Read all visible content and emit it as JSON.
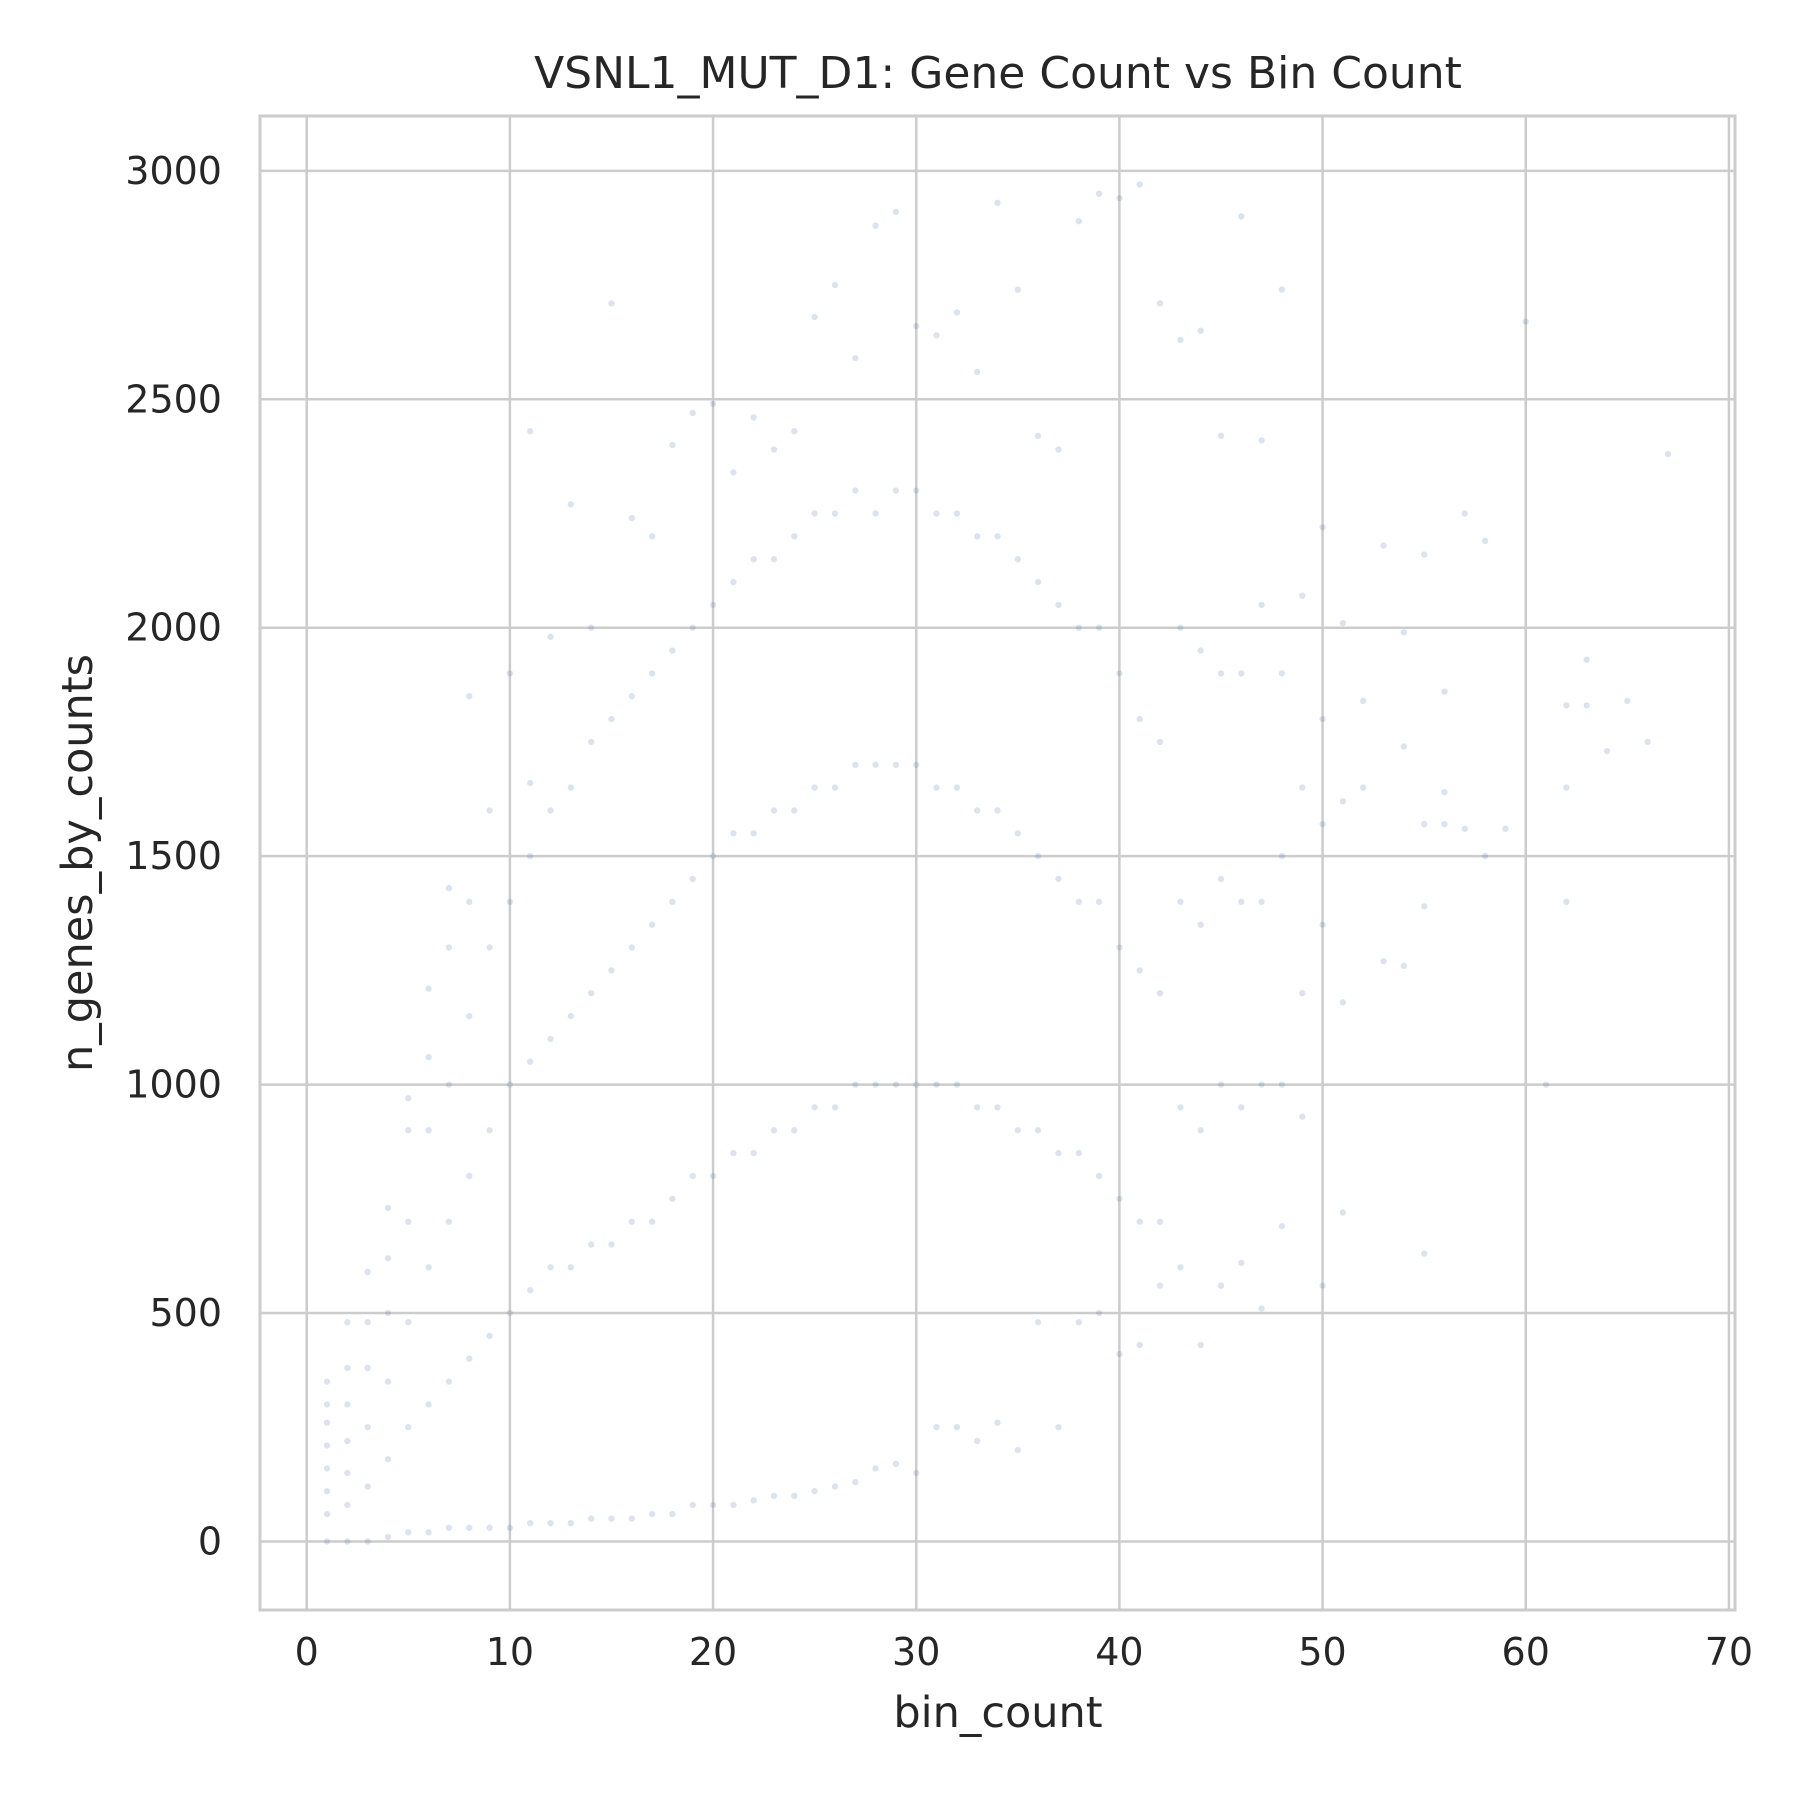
{
  "chart_data": {
    "type": "scatter",
    "title": "VSNL1_MUT_D1: Gene Count vs Bin Count",
    "xlabel": "bin_count",
    "ylabel": "n_genes_by_counts",
    "xlim": [
      -2.3,
      70.3
    ],
    "ylim": [
      -150,
      3120
    ],
    "x_ticks": [
      0,
      10,
      20,
      30,
      40,
      50,
      60,
      70
    ],
    "y_ticks": [
      0,
      500,
      1000,
      1500,
      2000,
      2500,
      3000
    ],
    "grid": true,
    "marker_color": "#4c72b0",
    "marker_alpha": 0.2,
    "series": [
      {
        "points": [
          [
            1,
            0
          ],
          [
            1,
            60
          ],
          [
            1,
            110
          ],
          [
            1,
            160
          ],
          [
            1,
            210
          ],
          [
            1,
            260
          ],
          [
            1,
            300
          ],
          [
            1,
            350
          ],
          [
            2,
            0
          ],
          [
            2,
            80
          ],
          [
            2,
            150
          ],
          [
            2,
            220
          ],
          [
            2,
            300
          ],
          [
            2,
            380
          ],
          [
            2,
            480
          ],
          [
            3,
            0
          ],
          [
            3,
            120
          ],
          [
            3,
            250
          ],
          [
            3,
            380
          ],
          [
            3,
            480
          ],
          [
            3,
            590
          ],
          [
            4,
            10
          ],
          [
            4,
            180
          ],
          [
            4,
            350
          ],
          [
            4,
            500
          ],
          [
            4,
            620
          ],
          [
            4,
            730
          ],
          [
            5,
            20
          ],
          [
            5,
            250
          ],
          [
            5,
            480
          ],
          [
            5,
            700
          ],
          [
            5,
            900
          ],
          [
            5,
            970
          ],
          [
            6,
            20
          ],
          [
            6,
            300
          ],
          [
            6,
            600
          ],
          [
            6,
            900
          ],
          [
            6,
            1060
          ],
          [
            6,
            1210
          ],
          [
            7,
            30
          ],
          [
            7,
            350
          ],
          [
            7,
            700
          ],
          [
            7,
            1000
          ],
          [
            7,
            1300
          ],
          [
            7,
            1430
          ],
          [
            8,
            30
          ],
          [
            8,
            400
          ],
          [
            8,
            800
          ],
          [
            8,
            1150
          ],
          [
            8,
            1400
          ],
          [
            8,
            1850
          ],
          [
            9,
            30
          ],
          [
            9,
            450
          ],
          [
            9,
            900
          ],
          [
            9,
            1300
          ],
          [
            9,
            1600
          ],
          [
            10,
            30
          ],
          [
            10,
            500
          ],
          [
            10,
            1000
          ],
          [
            10,
            1400
          ],
          [
            10,
            1900
          ],
          [
            11,
            40
          ],
          [
            11,
            550
          ],
          [
            11,
            1050
          ],
          [
            11,
            1500
          ],
          [
            11,
            1660
          ],
          [
            11,
            2430
          ],
          [
            12,
            40
          ],
          [
            12,
            600
          ],
          [
            12,
            1100
          ],
          [
            12,
            1600
          ],
          [
            12,
            1980
          ],
          [
            13,
            40
          ],
          [
            13,
            600
          ],
          [
            13,
            1150
          ],
          [
            13,
            1650
          ],
          [
            13,
            2270
          ],
          [
            14,
            50
          ],
          [
            14,
            650
          ],
          [
            14,
            1200
          ],
          [
            14,
            1750
          ],
          [
            14,
            2000
          ],
          [
            15,
            50
          ],
          [
            15,
            650
          ],
          [
            15,
            1250
          ],
          [
            15,
            1800
          ],
          [
            15,
            2710
          ],
          [
            16,
            50
          ],
          [
            16,
            700
          ],
          [
            16,
            1300
          ],
          [
            16,
            1850
          ],
          [
            16,
            2240
          ],
          [
            17,
            60
          ],
          [
            17,
            700
          ],
          [
            17,
            1350
          ],
          [
            17,
            1900
          ],
          [
            17,
            2200
          ],
          [
            18,
            60
          ],
          [
            18,
            750
          ],
          [
            18,
            1400
          ],
          [
            18,
            1950
          ],
          [
            18,
            2400
          ],
          [
            19,
            80
          ],
          [
            19,
            800
          ],
          [
            19,
            1450
          ],
          [
            19,
            2000
          ],
          [
            19,
            2470
          ],
          [
            20,
            80
          ],
          [
            20,
            800
          ],
          [
            20,
            1500
          ],
          [
            20,
            2050
          ],
          [
            20,
            2490
          ],
          [
            21,
            80
          ],
          [
            21,
            850
          ],
          [
            21,
            1550
          ],
          [
            21,
            2100
          ],
          [
            21,
            2340
          ],
          [
            22,
            90
          ],
          [
            22,
            850
          ],
          [
            22,
            1550
          ],
          [
            22,
            2150
          ],
          [
            22,
            2460
          ],
          [
            23,
            100
          ],
          [
            23,
            900
          ],
          [
            23,
            1600
          ],
          [
            23,
            2150
          ],
          [
            23,
            2390
          ],
          [
            24,
            100
          ],
          [
            24,
            900
          ],
          [
            24,
            1600
          ],
          [
            24,
            2200
          ],
          [
            24,
            2430
          ],
          [
            25,
            110
          ],
          [
            25,
            950
          ],
          [
            25,
            1650
          ],
          [
            25,
            2250
          ],
          [
            25,
            2680
          ],
          [
            26,
            120
          ],
          [
            26,
            950
          ],
          [
            26,
            1650
          ],
          [
            26,
            2250
          ],
          [
            26,
            2750
          ],
          [
            27,
            130
          ],
          [
            27,
            1000
          ],
          [
            27,
            1700
          ],
          [
            27,
            2300
          ],
          [
            27,
            2590
          ],
          [
            28,
            160
          ],
          [
            28,
            1000
          ],
          [
            28,
            1700
          ],
          [
            28,
            2250
          ],
          [
            28,
            2880
          ],
          [
            29,
            170
          ],
          [
            29,
            1000
          ],
          [
            29,
            1700
          ],
          [
            29,
            2300
          ],
          [
            29,
            2910
          ],
          [
            30,
            150
          ],
          [
            30,
            1000
          ],
          [
            30,
            1700
          ],
          [
            30,
            2300
          ],
          [
            30,
            2660
          ],
          [
            31,
            250
          ],
          [
            31,
            1000
          ],
          [
            31,
            1650
          ],
          [
            31,
            2250
          ],
          [
            31,
            2640
          ],
          [
            32,
            250
          ],
          [
            32,
            1000
          ],
          [
            32,
            1650
          ],
          [
            32,
            2250
          ],
          [
            32,
            2690
          ],
          [
            33,
            220
          ],
          [
            33,
            950
          ],
          [
            33,
            1600
          ],
          [
            33,
            2200
          ],
          [
            33,
            2560
          ],
          [
            34,
            260
          ],
          [
            34,
            950
          ],
          [
            34,
            1600
          ],
          [
            34,
            2200
          ],
          [
            34,
            2930
          ],
          [
            35,
            200
          ],
          [
            35,
            900
          ],
          [
            35,
            1550
          ],
          [
            35,
            2150
          ],
          [
            35,
            2740
          ],
          [
            36,
            480
          ],
          [
            36,
            900
          ],
          [
            36,
            1500
          ],
          [
            36,
            2100
          ],
          [
            36,
            2420
          ],
          [
            37,
            250
          ],
          [
            37,
            850
          ],
          [
            37,
            1450
          ],
          [
            37,
            2050
          ],
          [
            37,
            2390
          ],
          [
            38,
            480
          ],
          [
            38,
            850
          ],
          [
            38,
            1400
          ],
          [
            38,
            2000
          ],
          [
            38,
            2890
          ],
          [
            39,
            500
          ],
          [
            39,
            800
          ],
          [
            39,
            1400
          ],
          [
            39,
            2000
          ],
          [
            39,
            2950
          ],
          [
            40,
            410
          ],
          [
            40,
            750
          ],
          [
            40,
            1300
          ],
          [
            40,
            1900
          ],
          [
            40,
            2940
          ],
          [
            41,
            430
          ],
          [
            41,
            700
          ],
          [
            41,
            1250
          ],
          [
            41,
            1800
          ],
          [
            41,
            2970
          ],
          [
            42,
            560
          ],
          [
            42,
            700
          ],
          [
            42,
            1200
          ],
          [
            42,
            1750
          ],
          [
            42,
            2710
          ],
          [
            43,
            600
          ],
          [
            43,
            950
          ],
          [
            43,
            1400
          ],
          [
            43,
            2000
          ],
          [
            43,
            2630
          ],
          [
            44,
            430
          ],
          [
            44,
            900
          ],
          [
            44,
            1350
          ],
          [
            44,
            1950
          ],
          [
            44,
            2650
          ],
          [
            45,
            560
          ],
          [
            45,
            1000
          ],
          [
            45,
            1450
          ],
          [
            45,
            1900
          ],
          [
            45,
            2420
          ],
          [
            46,
            610
          ],
          [
            46,
            950
          ],
          [
            46,
            1400
          ],
          [
            46,
            1900
          ],
          [
            46,
            2900
          ],
          [
            47,
            510
          ],
          [
            47,
            1000
          ],
          [
            47,
            1400
          ],
          [
            47,
            2050
          ],
          [
            47,
            2410
          ],
          [
            48,
            690
          ],
          [
            48,
            1000
          ],
          [
            48,
            1500
          ],
          [
            48,
            1900
          ],
          [
            48,
            2740
          ],
          [
            49,
            930
          ],
          [
            49,
            1200
          ],
          [
            49,
            1650
          ],
          [
            49,
            2070
          ],
          [
            50,
            560
          ],
          [
            50,
            1350
          ],
          [
            50,
            1570
          ],
          [
            50,
            1800
          ],
          [
            50,
            2220
          ],
          [
            51,
            720
          ],
          [
            51,
            1180
          ],
          [
            51,
            1620
          ],
          [
            51,
            2010
          ],
          [
            52,
            1650
          ],
          [
            52,
            1840
          ],
          [
            53,
            1270
          ],
          [
            53,
            2180
          ],
          [
            54,
            1260
          ],
          [
            54,
            1740
          ],
          [
            54,
            1990
          ],
          [
            55,
            630
          ],
          [
            55,
            1390
          ],
          [
            55,
            1570
          ],
          [
            55,
            2160
          ],
          [
            56,
            1570
          ],
          [
            56,
            1640
          ],
          [
            56,
            1860
          ],
          [
            57,
            1560
          ],
          [
            57,
            2250
          ],
          [
            58,
            1500
          ],
          [
            58,
            2190
          ],
          [
            59,
            1560
          ],
          [
            60,
            2670
          ],
          [
            61,
            1000
          ],
          [
            62,
            1400
          ],
          [
            62,
            1650
          ],
          [
            62,
            1830
          ],
          [
            63,
            1830
          ],
          [
            63,
            1930
          ],
          [
            64,
            1730
          ],
          [
            65,
            1840
          ],
          [
            66,
            1750
          ],
          [
            67,
            2380
          ]
        ]
      }
    ]
  }
}
